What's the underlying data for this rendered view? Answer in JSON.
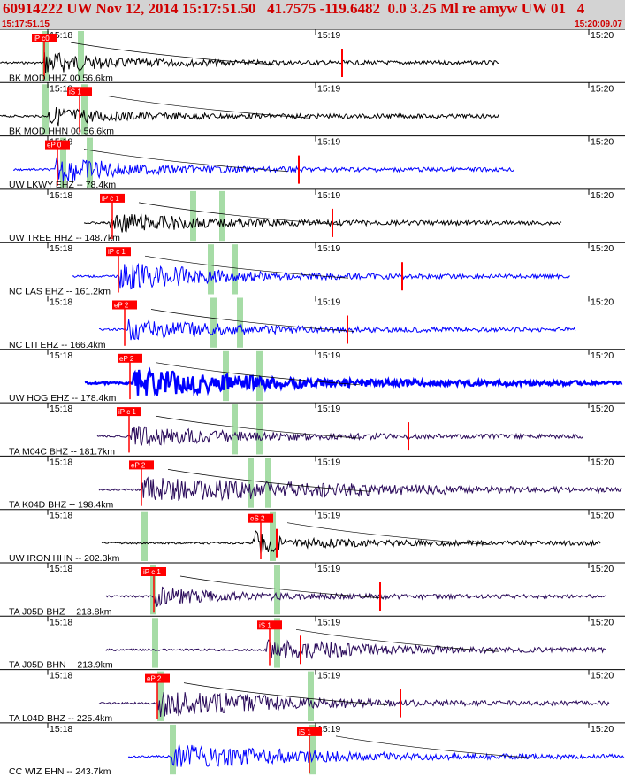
{
  "header": {
    "title": "60914222 UW Nov 12, 2014 15:17:51.50   41.7575 -119.6482  0.0 3.25 Ml re amyw UW 01   4",
    "start_time": "15:17:51.15",
    "end_time": "15:20:09.07"
  },
  "colors": {
    "header_bg": "#d3d3d3",
    "header_text": "#d00000",
    "trace_black": "#000000",
    "trace_blue": "#0000ff",
    "trace_purple": "#2a0a5a",
    "pick_red": "#ff0000",
    "window_green": "#a6dca6",
    "tick_lines": "#000000"
  },
  "time_labels": [
    "15:18",
    "15:19",
    "15:20"
  ],
  "channels": [
    {
      "label": "BK MOD HHZ 00 56.6km",
      "color": "black",
      "picks": [
        "iP c0"
      ]
    },
    {
      "label": "BK MOD HHN 00 56.6km",
      "color": "black",
      "picks": [
        "iS 1"
      ]
    },
    {
      "label": "UW LKWY EHZ -- 78.4km",
      "color": "blue",
      "picks": [
        "eP 0"
      ]
    },
    {
      "label": "UW TREE HHZ -- 148.7km",
      "color": "black",
      "picks": [
        "iP c 1"
      ]
    },
    {
      "label": "NC LAS EHZ -- 161.2km",
      "color": "blue",
      "picks": [
        "iP c 1"
      ]
    },
    {
      "label": "NC LTI EHZ -- 166.4km",
      "color": "blue",
      "picks": [
        "eP 2"
      ]
    },
    {
      "label": "UW HOG EHZ -- 178.4km",
      "color": "blue",
      "picks": [
        "eP 2"
      ]
    },
    {
      "label": "TA M04C BHZ -- 181.7km",
      "color": "purple",
      "picks": [
        "iP c 1"
      ]
    },
    {
      "label": "TA K04D BHZ -- 198.4km",
      "color": "purple",
      "picks": [
        "eP 2"
      ]
    },
    {
      "label": "UW IRON HHN -- 202.3km",
      "color": "black",
      "picks": [
        "eS 2"
      ]
    },
    {
      "label": "TA J05D BHZ -- 213.8km",
      "color": "purple",
      "picks": [
        "iP c 1"
      ]
    },
    {
      "label": "TA J05D BHN -- 213.9km",
      "color": "purple",
      "picks": [
        "iS 1"
      ]
    },
    {
      "label": "TA L04D BHZ -- 225.4km",
      "color": "purple",
      "picks": [
        "eP 2"
      ]
    },
    {
      "label": "CC WIZ EHN -- 243.7km",
      "color": "blue",
      "picks": [
        "iS 1"
      ]
    }
  ]
}
